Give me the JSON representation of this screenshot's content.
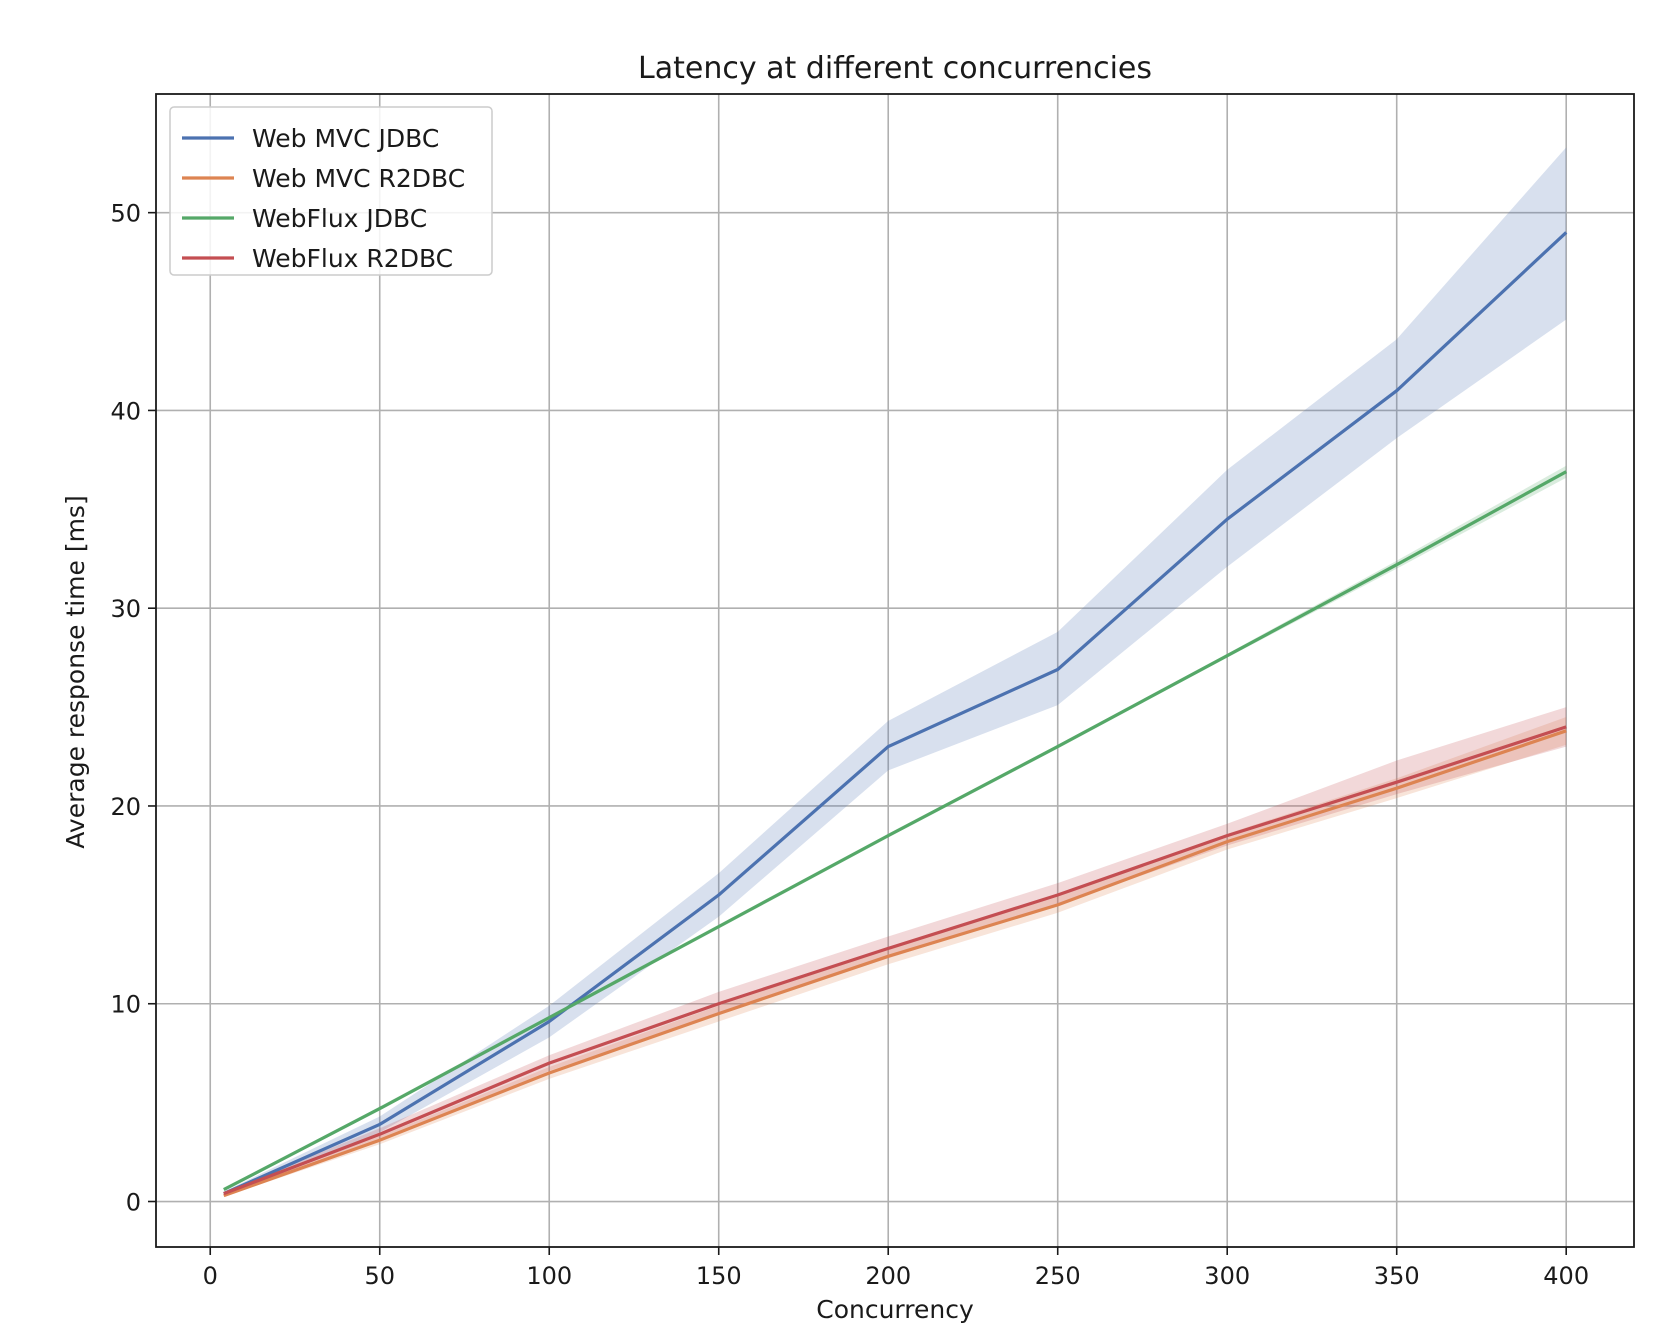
{
  "chart_data": {
    "type": "line",
    "title": "Latency at different concurrencies",
    "xlabel": "Concurrency",
    "ylabel": "Average response time [ms]",
    "xlim": [
      -16,
      420
    ],
    "ylim": [
      -2.3,
      56
    ],
    "xticks": [
      0,
      50,
      100,
      150,
      200,
      250,
      300,
      350,
      400
    ],
    "yticks": [
      0,
      10,
      20,
      30,
      40,
      50
    ],
    "grid": true,
    "legend_position": "top-left",
    "x": [
      4,
      50,
      100,
      150,
      200,
      250,
      300,
      350,
      400
    ],
    "series": [
      {
        "name": "Web MVC JDBC",
        "color": "#4c72b0",
        "values": [
          0.4,
          3.9,
          9.1,
          15.5,
          23.0,
          26.9,
          34.5,
          41.0,
          49.0
        ],
        "lower": [
          0.3,
          3.5,
          8.3,
          14.4,
          21.8,
          25.1,
          32.1,
          38.6,
          44.6
        ],
        "upper": [
          0.5,
          4.3,
          9.9,
          16.6,
          24.3,
          28.8,
          37.0,
          43.6,
          53.3
        ]
      },
      {
        "name": "Web MVC R2DBC",
        "color": "#dd8452",
        "values": [
          0.3,
          3.1,
          6.5,
          9.5,
          12.4,
          15.0,
          18.2,
          20.9,
          23.8
        ],
        "lower": [
          0.25,
          2.9,
          6.2,
          9.1,
          12.0,
          14.6,
          17.8,
          20.4,
          23.1
        ],
        "upper": [
          0.35,
          3.3,
          6.8,
          9.9,
          12.8,
          15.4,
          18.6,
          21.4,
          24.5
        ]
      },
      {
        "name": "WebFlux JDBC",
        "color": "#55a868",
        "values": [
          0.6,
          4.7,
          9.3,
          13.9,
          18.5,
          23.0,
          27.6,
          32.2,
          36.9
        ],
        "lower": [
          0.55,
          4.6,
          9.2,
          13.8,
          18.4,
          22.9,
          27.5,
          32.0,
          36.6
        ],
        "upper": [
          0.65,
          4.8,
          9.4,
          14.0,
          18.6,
          23.1,
          27.7,
          32.4,
          37.2
        ]
      },
      {
        "name": "WebFlux R2DBC",
        "color": "#c44e52",
        "values": [
          0.4,
          3.4,
          7.0,
          10.0,
          12.8,
          15.5,
          18.5,
          21.2,
          24.0
        ],
        "lower": [
          0.3,
          3.1,
          6.6,
          9.5,
          12.3,
          15.0,
          18.0,
          20.6,
          23.0
        ],
        "upper": [
          0.5,
          3.7,
          7.4,
          10.6,
          13.4,
          16.1,
          19.1,
          22.3,
          25.0
        ]
      }
    ]
  }
}
